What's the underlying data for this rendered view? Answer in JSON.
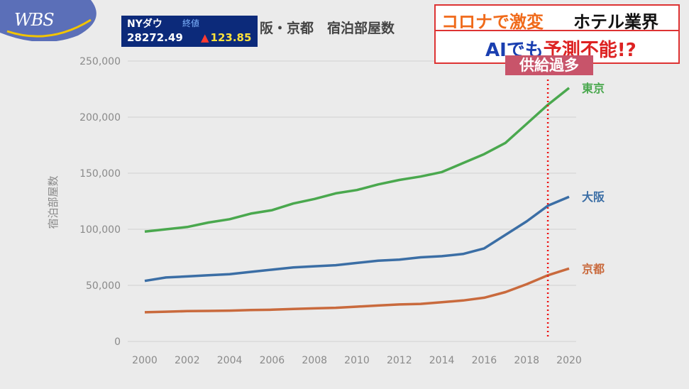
{
  "overlay": {
    "logo": "WBS",
    "ticker": {
      "label": "NYダウ",
      "sub": "終値",
      "value": "28272.49",
      "change": "123.85",
      "arrow": "▲"
    },
    "headline_top_a": "コロナで激変",
    "headline_top_b": "ホテル業界",
    "headline_bottom_a": "AIでも",
    "headline_bottom_b": "予測不能!?",
    "badge": "供給過多"
  },
  "chart_data": {
    "type": "line",
    "title": "阪・京都　宿泊部屋数",
    "ylabel": "宿泊部屋数",
    "xlabel": "",
    "x": [
      2000,
      2001,
      2002,
      2003,
      2004,
      2005,
      2006,
      2007,
      2008,
      2009,
      2010,
      2011,
      2012,
      2013,
      2014,
      2015,
      2016,
      2017,
      2018,
      2019,
      2020
    ],
    "x_ticks": [
      "2000",
      "2002",
      "2004",
      "2006",
      "2008",
      "2010",
      "2012",
      "2014",
      "2016",
      "2018",
      "2020"
    ],
    "y_ticks": [
      "0",
      "50,000",
      "100,000",
      "150,000",
      "200,000",
      "250,000"
    ],
    "ylim": [
      0,
      250000
    ],
    "grid": true,
    "legend": "end-of-line labels",
    "series": [
      {
        "name": "東京",
        "color": "#4aa84e",
        "values": [
          98000,
          100000,
          102000,
          106000,
          109000,
          114000,
          117000,
          123000,
          127000,
          132000,
          135000,
          140000,
          144000,
          147000,
          151000,
          159000,
          167000,
          177000,
          194000,
          211000,
          226000
        ]
      },
      {
        "name": "大阪",
        "color": "#3b6ea5",
        "values": [
          54000,
          57000,
          58000,
          59000,
          60000,
          62000,
          64000,
          66000,
          67000,
          68000,
          70000,
          72000,
          73000,
          75000,
          76000,
          78000,
          83000,
          95000,
          107000,
          121000,
          129000
        ]
      },
      {
        "name": "京都",
        "color": "#c96a3d",
        "values": [
          26000,
          26500,
          27000,
          27200,
          27500,
          28000,
          28300,
          29000,
          29500,
          30000,
          31000,
          32000,
          33000,
          33500,
          35000,
          36500,
          39000,
          44000,
          51000,
          59000,
          65000
        ]
      }
    ],
    "annotations": [
      {
        "type": "vline",
        "x": 2019,
        "style": "dotted",
        "color": "#e11"
      }
    ]
  }
}
